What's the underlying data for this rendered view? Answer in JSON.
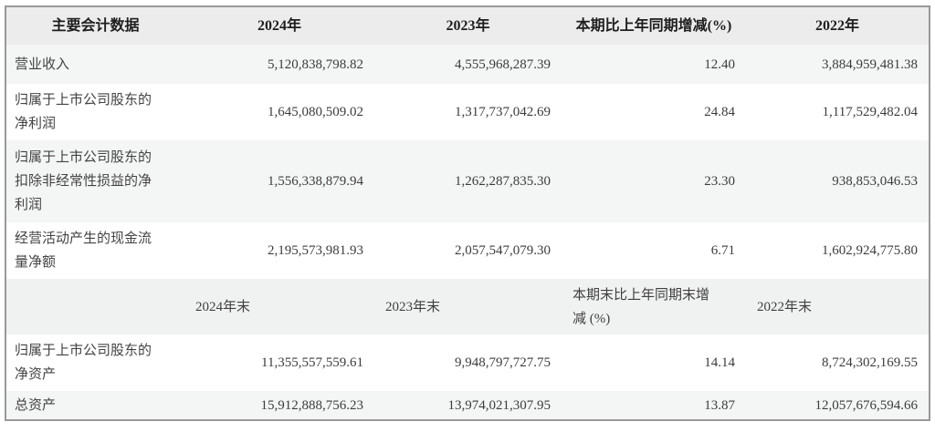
{
  "colors": {
    "outer_border": "#999999",
    "header_bg": "#ececec",
    "stripe_bg": "#f4f5f5",
    "white_bg": "#ffffff",
    "header_text": "#1e1e1e",
    "body_text": "#3c3c3c"
  },
  "table": {
    "header_top": {
      "metric": "主要会计数据",
      "y2024": "2024年",
      "y2023": "2023年",
      "change": "本期比上年同期增减(%)",
      "y2022": "2022年"
    },
    "rows_top": [
      {
        "label": "营业收入",
        "y2024": "5,120,838,798.82",
        "y2023": "4,555,968,287.39",
        "change": "12.40",
        "y2022": "3,884,959,481.38"
      },
      {
        "label": "归属于上市公司股东的\n净利润",
        "y2024": "1,645,080,509.02",
        "y2023": "1,317,737,042.69",
        "change": "24.84",
        "y2022": "1,117,529,482.04"
      },
      {
        "label": "归属于上市公司股东的\n扣除非经常性损益的净\n利润",
        "y2024": "1,556,338,879.94",
        "y2023": "1,262,287,835.30",
        "change": "23.30",
        "y2022": "938,853,046.53"
      },
      {
        "label": "经营活动产生的现金流\n量净额",
        "y2024": "2,195,573,981.93",
        "y2023": "2,057,547,079.30",
        "change": "6.71",
        "y2022": "1,602,924,775.80"
      }
    ],
    "header_mid": {
      "metric": "",
      "y2024": "2024年末",
      "y2023": "2023年末",
      "change": "本期末比上年同期末增\n减 (%)",
      "y2022": "2022年末"
    },
    "rows_bottom": [
      {
        "label": "归属于上市公司股东的\n净资产",
        "y2024": "11,355,557,559.61",
        "y2023": "9,948,797,727.75",
        "change": "14.14",
        "y2022": "8,724,302,169.55"
      },
      {
        "label": "总资产",
        "y2024": "15,912,888,756.23",
        "y2023": "13,974,021,307.95",
        "change": "13.87",
        "y2022": "12,057,676,594.66"
      }
    ]
  }
}
